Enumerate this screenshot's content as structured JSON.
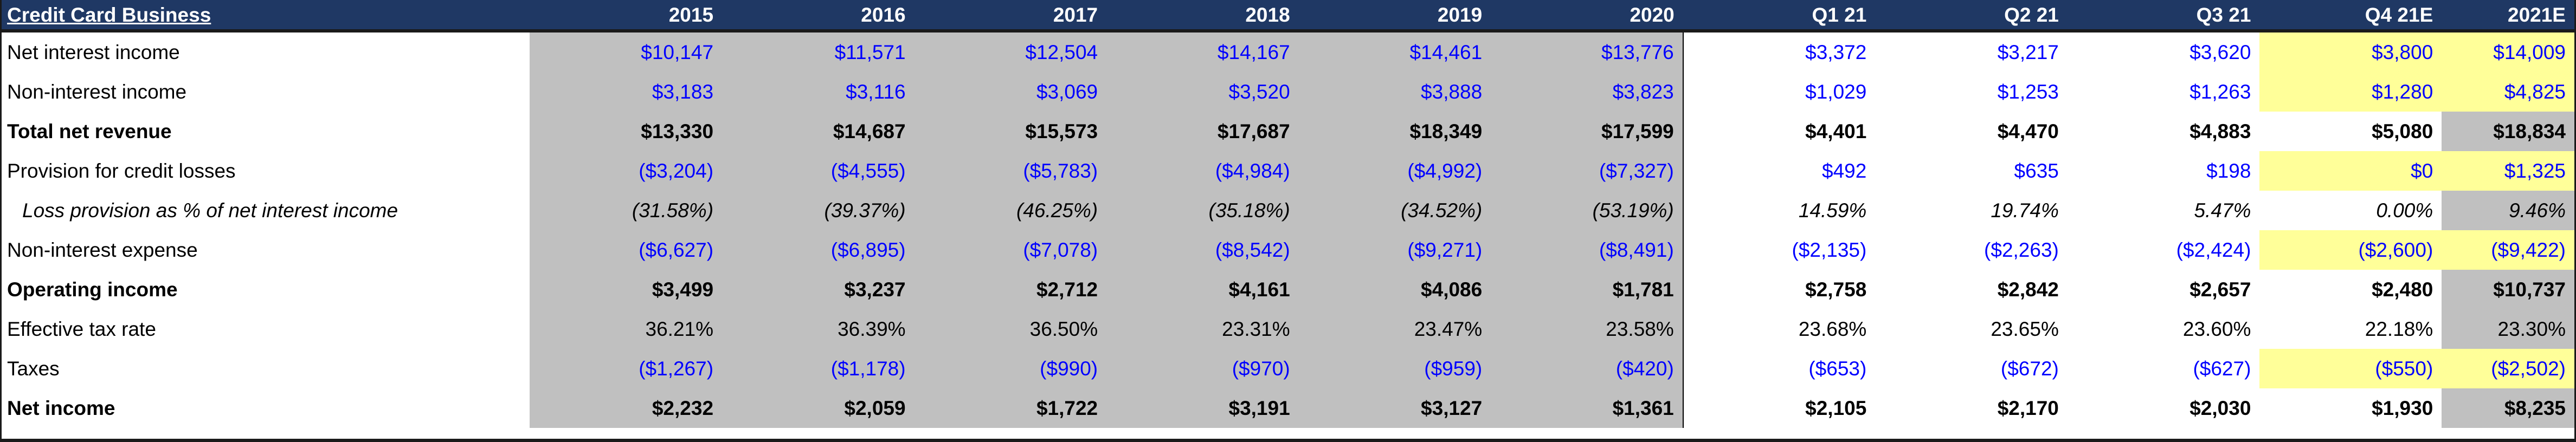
{
  "table": {
    "title": "Credit Card Business",
    "columns": [
      "2015",
      "2016",
      "2017",
      "2018",
      "2019",
      "2020",
      "Q1 21",
      "Q2 21",
      "Q3 21",
      "Q4 21E",
      "2021E"
    ],
    "rows": [
      {
        "label": "Net interest income",
        "values": [
          "$10,147",
          "$11,571",
          "$12,504",
          "$14,167",
          "$14,461",
          "$13,776",
          "$3,372",
          "$3,217",
          "$3,620",
          "$3,800",
          "$14,009"
        ]
      },
      {
        "label": "Non-interest income",
        "values": [
          "$3,183",
          "$3,116",
          "$3,069",
          "$3,520",
          "$3,888",
          "$3,823",
          "$1,029",
          "$1,253",
          "$1,263",
          "$1,280",
          "$4,825"
        ]
      },
      {
        "label": "Total net revenue",
        "values": [
          "$13,330",
          "$14,687",
          "$15,573",
          "$17,687",
          "$18,349",
          "$17,599",
          "$4,401",
          "$4,470",
          "$4,883",
          "$5,080",
          "$18,834"
        ]
      },
      {
        "label": "Provision for credit losses",
        "values": [
          "($3,204)",
          "($4,555)",
          "($5,783)",
          "($4,984)",
          "($4,992)",
          "($7,327)",
          "$492",
          "$635",
          "$198",
          "$0",
          "$1,325"
        ]
      },
      {
        "label": "Loss provision as % of net interest income",
        "values": [
          "(31.58%)",
          "(39.37%)",
          "(46.25%)",
          "(35.18%)",
          "(34.52%)",
          "(53.19%)",
          "14.59%",
          "19.74%",
          "5.47%",
          "0.00%",
          "9.46%"
        ]
      },
      {
        "label": "Non-interest expense",
        "values": [
          "($6,627)",
          "($6,895)",
          "($7,078)",
          "($8,542)",
          "($9,271)",
          "($8,491)",
          "($2,135)",
          "($2,263)",
          "($2,424)",
          "($2,600)",
          "($9,422)"
        ]
      },
      {
        "label": "Operating income",
        "values": [
          "$3,499",
          "$3,237",
          "$2,712",
          "$4,161",
          "$4,086",
          "$1,781",
          "$2,758",
          "$2,842",
          "$2,657",
          "$2,480",
          "$10,737"
        ]
      },
      {
        "label": "Effective tax rate",
        "values": [
          "36.21%",
          "36.39%",
          "36.50%",
          "23.31%",
          "23.47%",
          "23.58%",
          "23.68%",
          "23.65%",
          "23.60%",
          "22.18%",
          "23.30%"
        ]
      },
      {
        "label": "Taxes",
        "values": [
          "($1,267)",
          "($1,178)",
          "($990)",
          "($970)",
          "($959)",
          "($420)",
          "($653)",
          "($672)",
          "($627)",
          "($550)",
          "($2,502)"
        ]
      },
      {
        "label": "Net income",
        "values": [
          "$2,232",
          "$2,059",
          "$1,722",
          "$3,191",
          "$3,127",
          "$1,361",
          "$2,105",
          "$2,170",
          "$2,030",
          "$1,930",
          "$8,235"
        ]
      }
    ]
  },
  "colors": {
    "header_bg": "#1f3864",
    "historical_bg": "#c0c0c0",
    "highlight_bg": "#ffff99",
    "input_font": "#0000ff",
    "calc_font": "#000000"
  }
}
